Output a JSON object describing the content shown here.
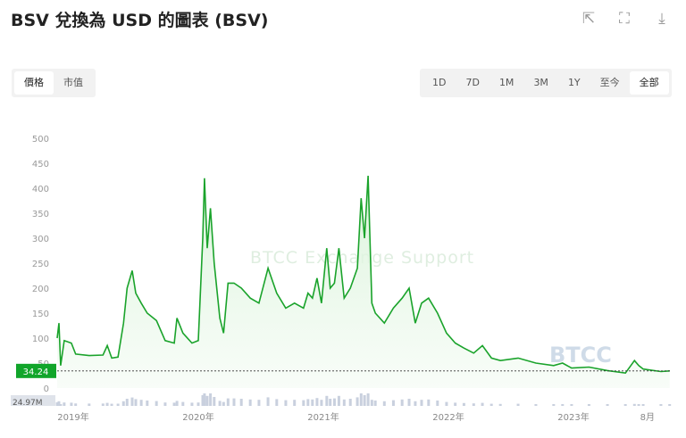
{
  "header": {
    "title": "BSV 兌換為 USD 的圖表 (BSV)",
    "icons": [
      "share-icon",
      "fullscreen-icon",
      "download-icon"
    ]
  },
  "metric_tabs": [
    {
      "label": "價格",
      "active": true
    },
    {
      "label": "市值",
      "active": false
    }
  ],
  "range_tabs": [
    {
      "label": "1D"
    },
    {
      "label": "7D"
    },
    {
      "label": "1M"
    },
    {
      "label": "3M"
    },
    {
      "label": "1Y"
    },
    {
      "label": "至今"
    },
    {
      "label": "全部",
      "active": true
    }
  ],
  "watermark": "BTCC Exchange Support",
  "logo_watermark": "BTCC",
  "colors": {
    "line": "#1aa32b",
    "current_label_bg": "#11a52a",
    "volume": "#c9d0de"
  },
  "chart_data": {
    "type": "area",
    "ylim": [
      0,
      500
    ],
    "yticks": [
      "0",
      "50",
      "100",
      "150",
      "200",
      "250",
      "300",
      "350",
      "400",
      "450",
      "500"
    ],
    "xticks": [
      {
        "label": "2019年",
        "date": "2019-01-01"
      },
      {
        "label": "2020年",
        "date": "2020-01-01"
      },
      {
        "label": "2021年",
        "date": "2021-01-01"
      },
      {
        "label": "2022年",
        "date": "2022-01-01"
      },
      {
        "label": "2023年",
        "date": "2023-01-01"
      },
      {
        "label": "8月",
        "date": "2023-08-04"
      }
    ],
    "current_price": "34.24",
    "volume_label": "24.97M",
    "points": [
      [
        "2018-11-15",
        100
      ],
      [
        "2018-11-20",
        130
      ],
      [
        "2018-11-25",
        45
      ],
      [
        "2018-12-05",
        95
      ],
      [
        "2018-12-26",
        90
      ],
      [
        "2019-01-08",
        68
      ],
      [
        "2019-02-17",
        65
      ],
      [
        "2019-03-27",
        66
      ],
      [
        "2019-04-09",
        85
      ],
      [
        "2019-04-22",
        60
      ],
      [
        "2019-05-10",
        62
      ],
      [
        "2019-05-26",
        130
      ],
      [
        "2019-06-06",
        200
      ],
      [
        "2019-06-21",
        235
      ],
      [
        "2019-07-01",
        190
      ],
      [
        "2019-07-17",
        170
      ],
      [
        "2019-08-04",
        150
      ],
      [
        "2019-08-31",
        135
      ],
      [
        "2019-09-26",
        95
      ],
      [
        "2019-10-22",
        90
      ],
      [
        "2019-10-30",
        140
      ],
      [
        "2019-11-17",
        110
      ],
      [
        "2019-12-13",
        90
      ],
      [
        "2020-01-01",
        95
      ],
      [
        "2020-01-14",
        300
      ],
      [
        "2020-01-19",
        420
      ],
      [
        "2020-01-27",
        280
      ],
      [
        "2020-02-06",
        360
      ],
      [
        "2020-02-17",
        250
      ],
      [
        "2020-03-03",
        140
      ],
      [
        "2020-03-14",
        110
      ],
      [
        "2020-03-27",
        210
      ],
      [
        "2020-04-14",
        210
      ],
      [
        "2020-05-05",
        200
      ],
      [
        "2020-05-31",
        180
      ],
      [
        "2020-06-26",
        170
      ],
      [
        "2020-07-22",
        240
      ],
      [
        "2020-08-17",
        190
      ],
      [
        "2020-09-13",
        160
      ],
      [
        "2020-10-08",
        170
      ],
      [
        "2020-11-04",
        160
      ],
      [
        "2020-11-17",
        190
      ],
      [
        "2020-11-30",
        180
      ],
      [
        "2020-12-13",
        220
      ],
      [
        "2020-12-26",
        170
      ],
      [
        "2021-01-11",
        280
      ],
      [
        "2021-01-21",
        200
      ],
      [
        "2021-02-03",
        210
      ],
      [
        "2021-02-16",
        280
      ],
      [
        "2021-03-01",
        180
      ],
      [
        "2021-03-19",
        200
      ],
      [
        "2021-04-09",
        240
      ],
      [
        "2021-04-20",
        380
      ],
      [
        "2021-04-30",
        300
      ],
      [
        "2021-05-10",
        425
      ],
      [
        "2021-05-21",
        170
      ],
      [
        "2021-05-31",
        150
      ],
      [
        "2021-06-27",
        130
      ],
      [
        "2021-07-23",
        160
      ],
      [
        "2021-08-18",
        180
      ],
      [
        "2021-09-08",
        200
      ],
      [
        "2021-09-26",
        130
      ],
      [
        "2021-10-14",
        170
      ],
      [
        "2021-11-04",
        180
      ],
      [
        "2021-11-30",
        150
      ],
      [
        "2021-12-26",
        110
      ],
      [
        "2022-01-21",
        90
      ],
      [
        "2022-02-16",
        80
      ],
      [
        "2022-03-14",
        70
      ],
      [
        "2022-04-09",
        85
      ],
      [
        "2022-05-05",
        60
      ],
      [
        "2022-05-31",
        55
      ],
      [
        "2022-07-22",
        60
      ],
      [
        "2022-09-13",
        50
      ],
      [
        "2022-11-04",
        45
      ],
      [
        "2022-11-30",
        50
      ],
      [
        "2022-12-26",
        40
      ],
      [
        "2023-02-16",
        42
      ],
      [
        "2023-04-09",
        35
      ],
      [
        "2023-05-31",
        30
      ],
      [
        "2023-06-27",
        55
      ],
      [
        "2023-07-09",
        45
      ],
      [
        "2023-07-22",
        38
      ],
      [
        "2023-09-13",
        33
      ],
      [
        "2023-10-08",
        34.24
      ]
    ]
  }
}
